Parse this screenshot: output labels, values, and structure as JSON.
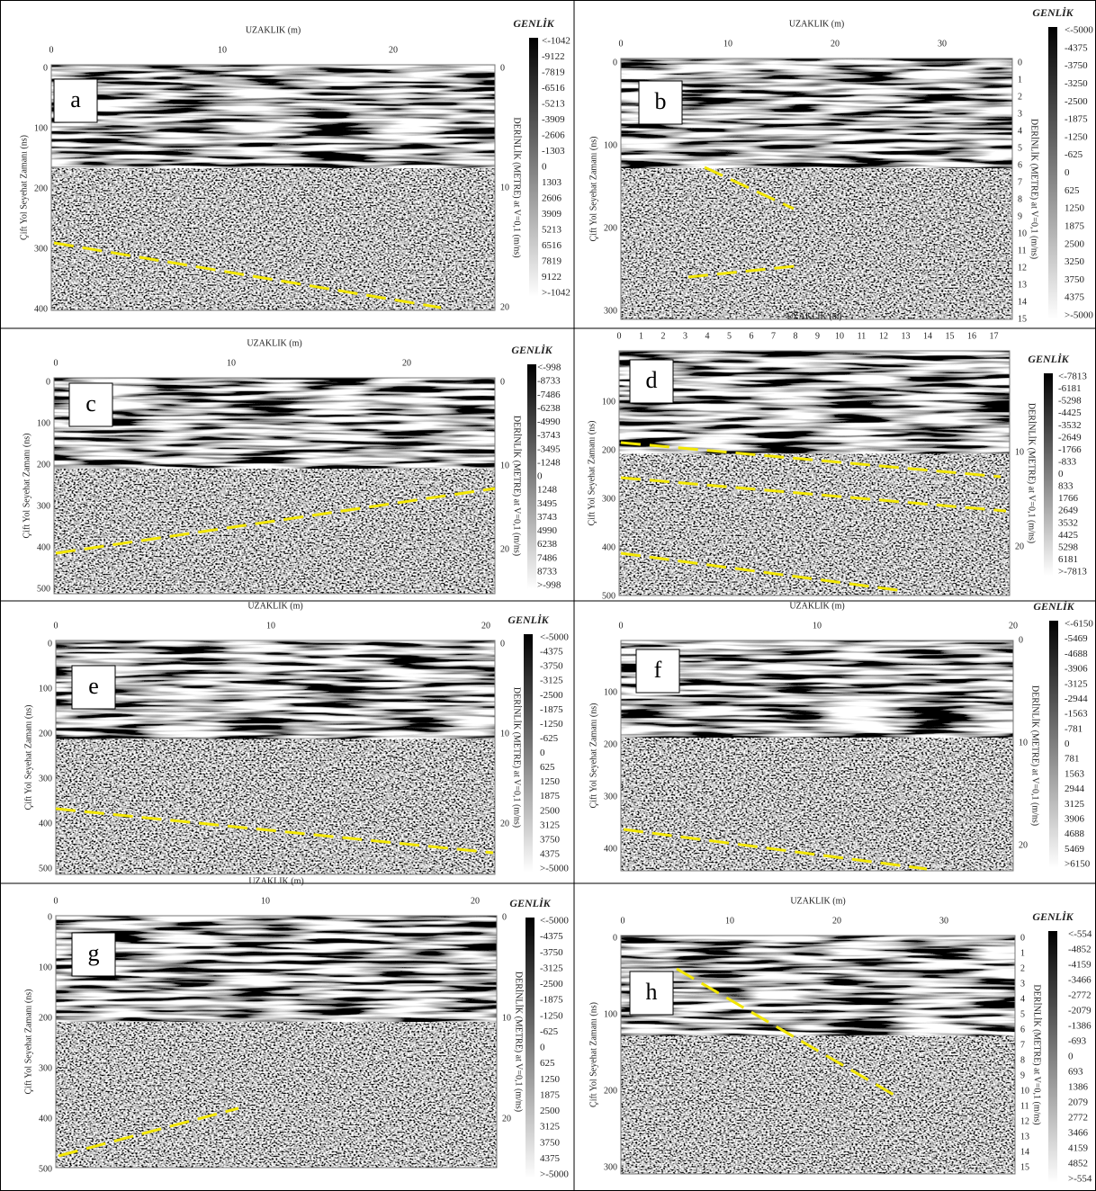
{
  "panels": [
    {
      "label": "a",
      "x_title": "UZAKLIK (m)",
      "x_ticks": [
        "0",
        "10",
        "20"
      ],
      "y_title": "Çift Yol Seyehat Zamanı (ns)",
      "y_ticks": [
        "0",
        "100",
        "200",
        "300",
        "400"
      ],
      "depth_title": "DERİNLİK (METRE) at V=0,1 (m/ns)",
      "depth_ticks": [
        "0",
        "10",
        "20"
      ],
      "colorbar_title": "GENLİK",
      "colorbar_labels": [
        "<-1042",
        "-9122",
        "-7819",
        "-6516",
        "-5213",
        "-3909",
        "-2606",
        "-1303",
        "0",
        "1303",
        "2606",
        "3909",
        "5213",
        "6516",
        "7819",
        "9122",
        ">-1042"
      ]
    },
    {
      "label": "b",
      "x_title": "UZAKLIK (m)",
      "x_ticks": [
        "0",
        "10",
        "20",
        "30"
      ],
      "y_title": "Çift Yol Seyehat Zamanı (ns)",
      "y_ticks": [
        "0",
        "100",
        "200",
        "300"
      ],
      "depth_title": "DERİNLİK (METRE) at V=0,1 (m/ns)",
      "depth_ticks": [
        "0",
        "1",
        "2",
        "3",
        "4",
        "5",
        "6",
        "7",
        "8",
        "9",
        "10",
        "11",
        "12",
        "13",
        "14",
        "15"
      ],
      "colorbar_title": "GENLİK",
      "colorbar_labels": [
        "<-5000",
        "-4375",
        "-3750",
        "-3250",
        "-2500",
        "-1875",
        "-1250",
        "-625",
        "0",
        "625",
        "1250",
        "1875",
        "2500",
        "3250",
        "3750",
        "4375",
        ">-5000"
      ]
    },
    {
      "label": "c",
      "x_title": "UZAKLIK (m)",
      "x_ticks": [
        "0",
        "10",
        "20"
      ],
      "y_title": "Çift Yol Seyehat Zamanı (ns)",
      "y_ticks": [
        "0",
        "100",
        "200",
        "300",
        "400",
        "500"
      ],
      "depth_title": "DERİNLİK (METRE) at V=0,1 (m/ns)",
      "depth_ticks": [
        "0",
        "10",
        "20"
      ],
      "colorbar_title": "GENLİK",
      "colorbar_labels": [
        "<-998",
        "-8733",
        "-7486",
        "-6238",
        "-4990",
        "-3743",
        "-3495",
        "-1248",
        "0",
        "1248",
        "3495",
        "3743",
        "4990",
        "6238",
        "7486",
        "8733",
        ">-998"
      ]
    },
    {
      "label": "d",
      "x_title": "UZAKLIK (m)",
      "x_ticks": [
        "0",
        "1",
        "2",
        "3",
        "4",
        "5",
        "6",
        "7",
        "8",
        "9",
        "10",
        "11",
        "12",
        "13",
        "14",
        "15",
        "16",
        "17"
      ],
      "y_title": "Çift Yol Seyehat Zamanı (ns)",
      "y_ticks": [
        "100",
        "200",
        "300",
        "400",
        "500"
      ],
      "depth_title": "DERİNLİK (METRE) at V=0,1 (m/ns)",
      "depth_ticks": [
        "10",
        "20"
      ],
      "colorbar_title": "GENLİK",
      "colorbar_labels": [
        "<-7813",
        "-6181",
        "-5298",
        "-4425",
        "-3532",
        "-2649",
        "-1766",
        "-833",
        "0",
        "833",
        "1766",
        "2649",
        "3532",
        "4425",
        "5298",
        "6181",
        ">-7813"
      ]
    },
    {
      "label": "e",
      "x_title": "UZAKLIK (m)",
      "x_ticks": [
        "0",
        "10",
        "20"
      ],
      "y_title": "Çift Yol Seyehat Zamanı (ns)",
      "y_ticks": [
        "0",
        "100",
        "200",
        "300",
        "400",
        "500"
      ],
      "depth_title": "DERİNLİK (METRE) at V=0,1 (m/ns)",
      "depth_ticks": [
        "0",
        "10",
        "20"
      ],
      "colorbar_title": "GENLİK",
      "colorbar_labels": [
        "<-5000",
        "-4375",
        "-3750",
        "-3125",
        "-2500",
        "-1875",
        "-1250",
        "-625",
        "0",
        "625",
        "1250",
        "1875",
        "2500",
        "3125",
        "3750",
        "4375",
        ">-5000"
      ]
    },
    {
      "label": "f",
      "x_title": "UZAKLIK (m)",
      "x_ticks": [
        "0",
        "10",
        "20"
      ],
      "y_title": "Çift Yol Seyehat Zamanı (ns)",
      "y_ticks": [
        "100",
        "200",
        "300",
        "400"
      ],
      "depth_title": "DERİNLİK (METRE) at V=0,1 (m/ns)",
      "depth_ticks": [
        "0",
        "10",
        "20"
      ],
      "colorbar_title": "GENLİK",
      "colorbar_labels": [
        "<-6150",
        "-5469",
        "-4688",
        "-3906",
        "-3125",
        "-2944",
        "-1563",
        "-781",
        "0",
        "781",
        "1563",
        "2944",
        "3125",
        "3906",
        "4688",
        "5469",
        ">6150"
      ]
    },
    {
      "label": "g",
      "x_title": "UZAKLIK (m)",
      "x_ticks": [
        "0",
        "10",
        "20"
      ],
      "y_title": "Çift Yol Seyehat Zamanı (ns)",
      "y_ticks": [
        "0",
        "100",
        "200",
        "300",
        "400",
        "500"
      ],
      "depth_title": "DERİNLİK (METRE) at V=0,1 (m/ns)",
      "depth_ticks": [
        "0",
        "10",
        "20"
      ],
      "colorbar_title": "GENLİK",
      "colorbar_labels": [
        "<-5000",
        "-4375",
        "-3750",
        "-3125",
        "-2500",
        "-1875",
        "-1250",
        "-625",
        "0",
        "625",
        "1250",
        "1875",
        "2500",
        "3125",
        "3750",
        "4375",
        ">-5000"
      ]
    },
    {
      "label": "h",
      "x_title": "UZAKLIK (m)",
      "x_ticks": [
        "0",
        "10",
        "20",
        "30"
      ],
      "y_title": "Çift Yol Seyehat Zamanı (ns)",
      "y_ticks": [
        "0",
        "100",
        "200",
        "300"
      ],
      "depth_title": "DERİNLİK (METRE) at V=0,1 (m/ns)",
      "depth_ticks": [
        "0",
        "1",
        "2",
        "3",
        "4",
        "5",
        "6",
        "7",
        "8",
        "9",
        "10",
        "11",
        "12",
        "13",
        "14",
        "15"
      ],
      "colorbar_title": "GENLİK",
      "colorbar_labels": [
        "<-554",
        "-4852",
        "-4159",
        "-3466",
        "-2772",
        "-2079",
        "-1386",
        "-693",
        "0",
        "693",
        "1386",
        "2079",
        "2772",
        "3466",
        "4159",
        "4852",
        ">-554"
      ]
    }
  ]
}
